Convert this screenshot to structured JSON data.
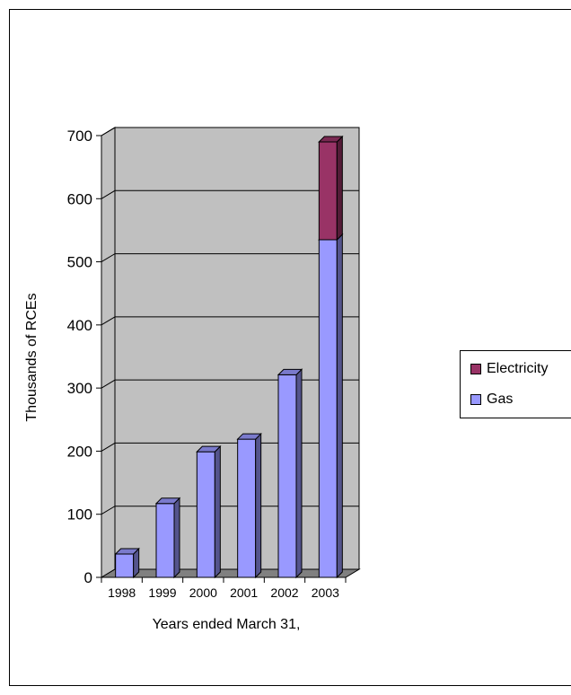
{
  "chart_data": {
    "type": "bar",
    "stacked": true,
    "three_d": true,
    "categories": [
      "1998",
      "1999",
      "2000",
      "2001",
      "2002",
      "2003"
    ],
    "series": [
      {
        "name": "Gas",
        "color": "#9999ff",
        "values": [
          37,
          117,
          199,
          219,
          321,
          535
        ]
      },
      {
        "name": "Electricity",
        "color": "#993366",
        "values": [
          0,
          0,
          0,
          0,
          0,
          155
        ]
      }
    ],
    "xlabel": "Years ended March 31,",
    "ylabel": "Thousands of RCEs",
    "ylim": [
      0,
      700
    ],
    "yticks": [
      0,
      100,
      200,
      300,
      400,
      500,
      600,
      700
    ],
    "grid": true,
    "legend": "right",
    "wall_color": "#c0c0c0",
    "floor_color": "#808080"
  }
}
